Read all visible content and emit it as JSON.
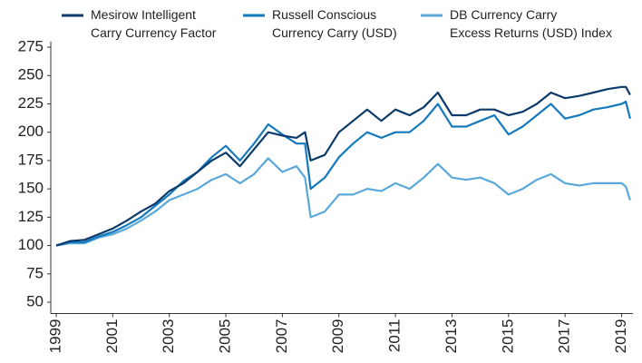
{
  "chart_data": {
    "type": "line",
    "x": [
      1999,
      1999.5,
      2000,
      2000.5,
      2001,
      2001.5,
      2002,
      2002.5,
      2003,
      2003.5,
      2004,
      2004.5,
      2005,
      2005.5,
      2006,
      2006.5,
      2007,
      2007.5,
      2007.8,
      2008,
      2008.5,
      2009,
      2009.5,
      2010,
      2010.5,
      2011,
      2011.5,
      2012,
      2012.5,
      2013,
      2013.5,
      2014,
      2014.5,
      2015,
      2015.5,
      2016,
      2016.5,
      2017,
      2017.5,
      2018,
      2018.5,
      2019,
      2019.15,
      2019.3
    ],
    "series": [
      {
        "name": "Mesirow Intelligent\nCarry Currency Factor",
        "color": "#0b3a6b",
        "values": [
          100,
          104,
          105,
          110,
          115,
          122,
          130,
          137,
          148,
          155,
          165,
          175,
          182,
          170,
          185,
          200,
          197,
          195,
          200,
          175,
          180,
          200,
          210,
          220,
          210,
          220,
          215,
          222,
          235,
          215,
          215,
          220,
          220,
          215,
          218,
          225,
          235,
          230,
          232,
          235,
          238,
          240,
          240,
          233
        ]
      },
      {
        "name": "Russell Conscious\nCurrency Carry (USD)",
        "color": "#1479bd",
        "values": [
          100,
          103,
          103,
          108,
          112,
          118,
          125,
          135,
          145,
          157,
          165,
          178,
          188,
          175,
          190,
          207,
          198,
          190,
          190,
          150,
          160,
          178,
          190,
          200,
          195,
          200,
          200,
          210,
          225,
          205,
          205,
          210,
          215,
          198,
          205,
          215,
          225,
          212,
          215,
          220,
          222,
          225,
          227,
          212
        ]
      },
      {
        "name": "DB Currency Carry\nExcess Returns (USD) Index",
        "color": "#5aa8da",
        "values": [
          100,
          102,
          102,
          107,
          110,
          115,
          122,
          130,
          140,
          145,
          150,
          158,
          163,
          155,
          163,
          177,
          165,
          170,
          160,
          125,
          130,
          145,
          145,
          150,
          148,
          155,
          150,
          160,
          172,
          160,
          158,
          160,
          155,
          145,
          150,
          158,
          163,
          155,
          153,
          155,
          155,
          155,
          152,
          140
        ]
      }
    ],
    "xlim": [
      1999,
      2019.4
    ],
    "xticks": [
      1999,
      2001,
      2003,
      2005,
      2007,
      2009,
      2011,
      2013,
      2015,
      2017,
      2019
    ],
    "ylim": [
      40,
      280
    ],
    "yticks": [
      50,
      75,
      100,
      125,
      150,
      175,
      200,
      225,
      250,
      275
    ],
    "grid": false
  }
}
